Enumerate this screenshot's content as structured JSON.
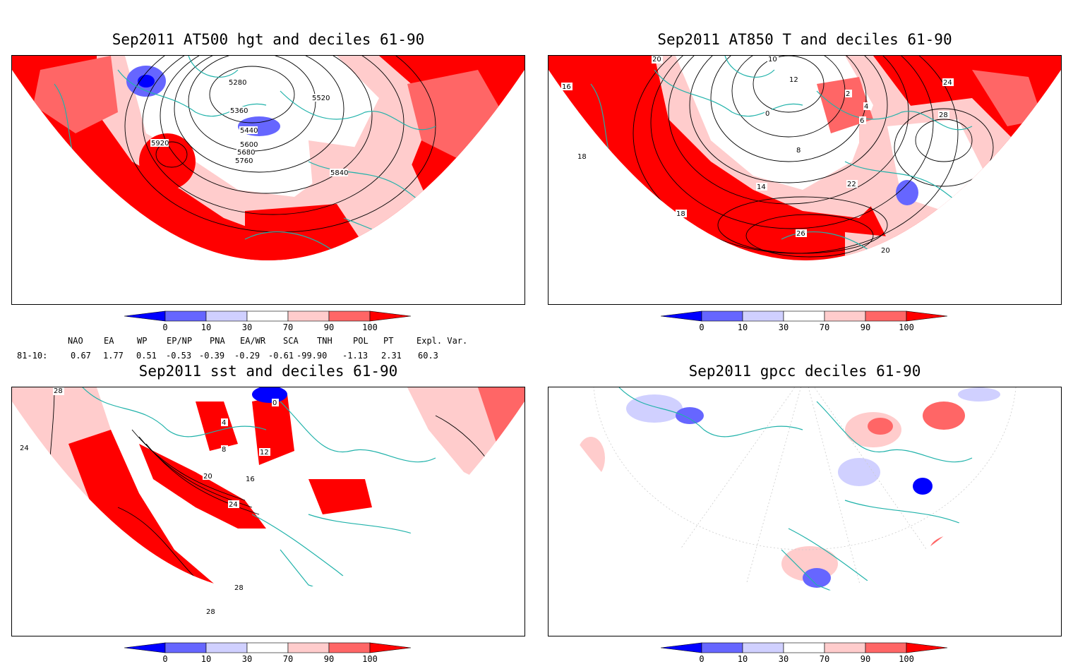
{
  "panels": [
    {
      "id": "hgt",
      "title": "Sep2011 AT500 hgt and deciles 61-90",
      "contour_labels": [
        "5280",
        "5360",
        "5440",
        "5520",
        "5600",
        "5680",
        "5760",
        "5840",
        "5920"
      ]
    },
    {
      "id": "t850",
      "title": "Sep2011 AT850 T and deciles 61-90",
      "contour_labels": [
        "20",
        "16",
        "18",
        "10",
        "12",
        "8",
        "6",
        "4",
        "2",
        "0",
        "14",
        "22",
        "24",
        "26",
        "28",
        "20",
        "18"
      ]
    },
    {
      "id": "sst",
      "title": "Sep2011 sst and deciles 61-90",
      "contour_labels": [
        "28",
        "24",
        "4",
        "0",
        "8",
        "12",
        "16",
        "20",
        "24",
        "28",
        "28"
      ]
    },
    {
      "id": "gpcc",
      "title": "Sep2011 gpcc deciles 61-90",
      "contour_labels": []
    }
  ],
  "colorbar": {
    "labels": [
      "0",
      "10",
      "30",
      "70",
      "90",
      "100"
    ],
    "colors": [
      "#0000ff",
      "#6666ff",
      "#d0d0ff",
      "#ffffff",
      "#ffcccc",
      "#ff6666",
      "#ff0000"
    ]
  },
  "indices": {
    "period_label": "81-10:",
    "columns": [
      {
        "name": "NAO",
        "value": "0.67"
      },
      {
        "name": "EA",
        "value": "1.77"
      },
      {
        "name": "WP",
        "value": "0.51"
      },
      {
        "name": "EP/NP",
        "value": "-0.53"
      },
      {
        "name": "PNA",
        "value": "-0.39"
      },
      {
        "name": "EA/WR",
        "value": "-0.29"
      },
      {
        "name": "SCA",
        "value": "-0.61"
      },
      {
        "name": "TNH",
        "value": "-99.90"
      },
      {
        "name": "POL",
        "value": "-1.13"
      },
      {
        "name": "PT",
        "value": "2.31"
      },
      {
        "name": "Expl. Var.",
        "value": "60.3"
      }
    ]
  }
}
